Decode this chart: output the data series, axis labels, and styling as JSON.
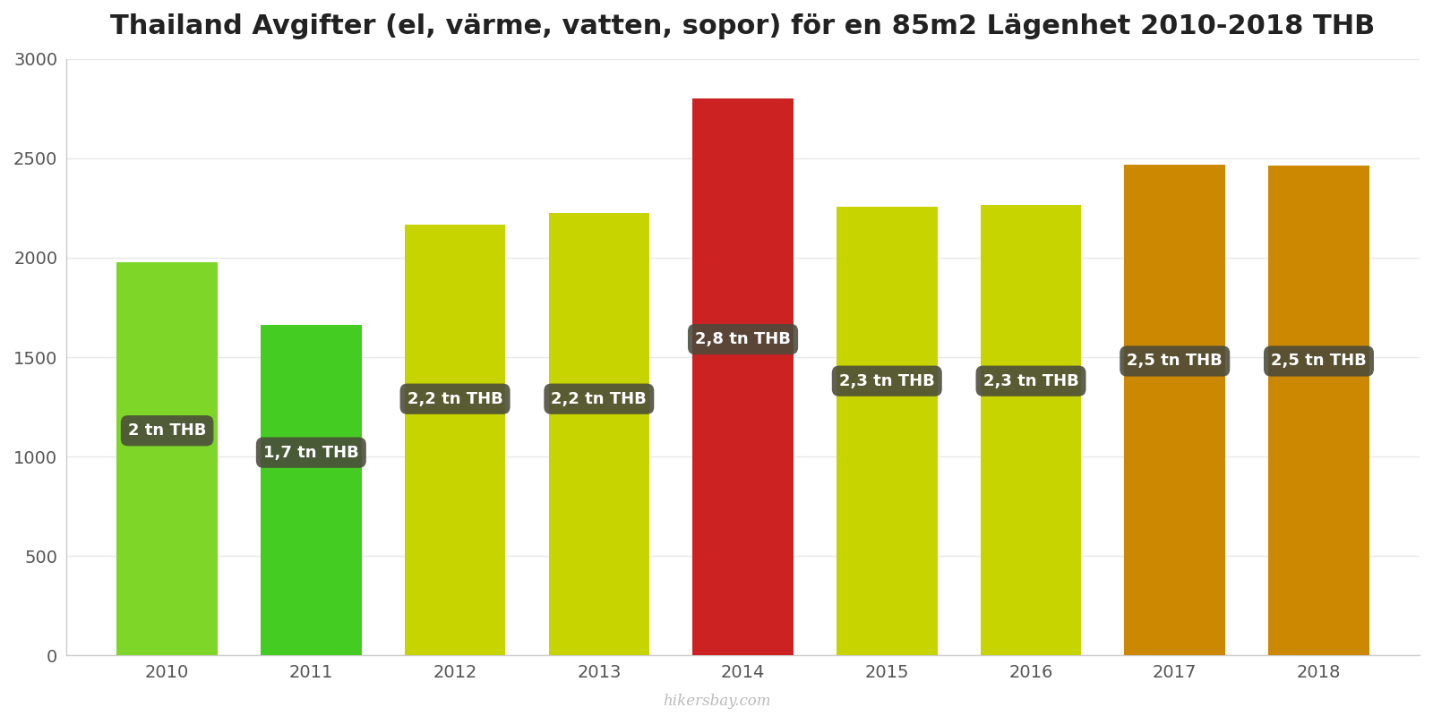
{
  "title": "Thailand Avgifter (el, värme, vatten, sopor) för en 85m2 Lägenhet 2010-2018 THB",
  "years": [
    2010,
    2011,
    2012,
    2013,
    2014,
    2015,
    2016,
    2017,
    2018
  ],
  "values": [
    1975,
    1660,
    2165,
    2225,
    2800,
    2255,
    2265,
    2470,
    2465
  ],
  "bar_colors": [
    "#7dd628",
    "#44cc22",
    "#c8d400",
    "#c8d400",
    "#cc2222",
    "#c8d400",
    "#c8d400",
    "#cc8800",
    "#cc8800"
  ],
  "labels": [
    "2 tn THB",
    "1,7 tn THB",
    "2,2 tn THB",
    "2,2 tn THB",
    "2,8 tn THB",
    "2,3 tn THB",
    "2,3 tn THB",
    "2,5 tn THB",
    "2,5 tn THB"
  ],
  "label_y_positions": [
    1130,
    1020,
    1290,
    1290,
    1590,
    1380,
    1380,
    1480,
    1480
  ],
  "ylabel": "",
  "xlabel": "",
  "ylim": [
    0,
    3000
  ],
  "yticks": [
    0,
    500,
    1000,
    1500,
    2000,
    2500,
    3000
  ],
  "background_color": "#ffffff",
  "grid_color": "#e8e8e8",
  "label_box_color": "#4a4a3a",
  "label_text_color": "#ffffff",
  "title_fontsize": 22,
  "watermark": "hikersbay.com",
  "bar_width": 0.7
}
